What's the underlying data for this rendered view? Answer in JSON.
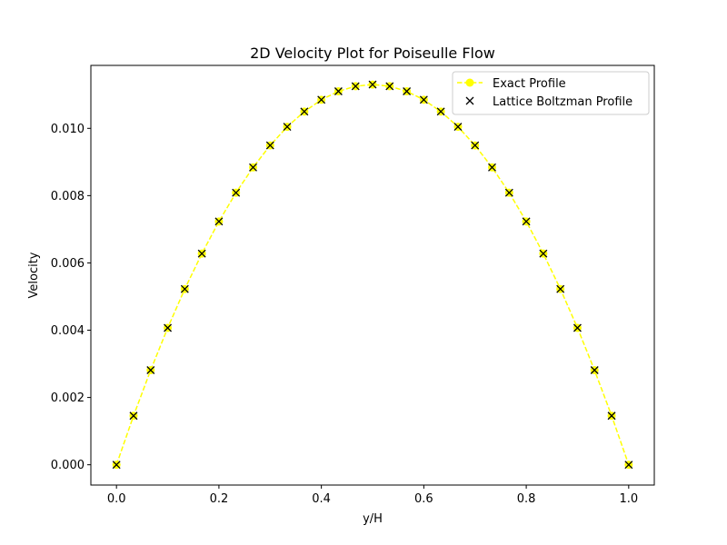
{
  "chart_data": {
    "type": "line",
    "title": "2D Velocity Plot for Poiseulle Flow",
    "xlabel": "y/H",
    "ylabel": "Velocity",
    "xlim": [
      -0.05,
      1.05
    ],
    "ylim": [
      -0.000603,
      0.011871
    ],
    "x_ticks": [
      "0.0",
      "0.2",
      "0.4",
      "0.6",
      "0.8",
      "1.0"
    ],
    "x_tick_values": [
      0.0,
      0.2,
      0.4,
      0.6,
      0.8,
      1.0
    ],
    "y_ticks": [
      "0.000",
      "0.002",
      "0.004",
      "0.006",
      "0.008",
      "0.010"
    ],
    "y_tick_values": [
      0.0,
      0.002,
      0.004,
      0.006,
      0.008,
      0.01
    ],
    "grid": false,
    "legend_position": "top-right",
    "series": [
      {
        "name": "Exact Profile",
        "style": "dashed-line-circle-markers",
        "color": "#ffff00",
        "x": [
          0.0,
          0.0333,
          0.0667,
          0.1,
          0.1333,
          0.1667,
          0.2,
          0.2333,
          0.2667,
          0.3,
          0.3333,
          0.3667,
          0.4,
          0.4333,
          0.4667,
          0.5,
          0.5333,
          0.5667,
          0.6,
          0.6333,
          0.6667,
          0.7,
          0.7333,
          0.7667,
          0.8,
          0.8333,
          0.8667,
          0.9,
          0.9333,
          0.9667,
          1.0
        ],
        "y": [
          0.0,
          0.001456,
          0.002812,
          0.004068,
          0.005223,
          0.006277,
          0.007232,
          0.008086,
          0.008839,
          0.009493,
          0.010046,
          0.010498,
          0.01085,
          0.011101,
          0.011252,
          0.011302,
          0.011252,
          0.011101,
          0.01085,
          0.010498,
          0.010046,
          0.009493,
          0.008839,
          0.008086,
          0.007232,
          0.006277,
          0.005223,
          0.004068,
          0.002812,
          0.001456,
          0.0
        ]
      },
      {
        "name": "Lattice Boltzman Profile",
        "style": "x-markers",
        "color": "#000000",
        "x": [
          0.0,
          0.0333,
          0.0667,
          0.1,
          0.1333,
          0.1667,
          0.2,
          0.2333,
          0.2667,
          0.3,
          0.3333,
          0.3667,
          0.4,
          0.4333,
          0.4667,
          0.5,
          0.5333,
          0.5667,
          0.6,
          0.6333,
          0.6667,
          0.7,
          0.7333,
          0.7667,
          0.8,
          0.8333,
          0.8667,
          0.9,
          0.9333,
          0.9667,
          1.0
        ],
        "y": [
          0.0,
          0.001456,
          0.002812,
          0.004068,
          0.005223,
          0.006277,
          0.007232,
          0.008086,
          0.008839,
          0.009493,
          0.010046,
          0.010498,
          0.01085,
          0.011101,
          0.011252,
          0.011302,
          0.011252,
          0.011101,
          0.01085,
          0.010498,
          0.010046,
          0.009493,
          0.008839,
          0.008086,
          0.007232,
          0.006277,
          0.005223,
          0.004068,
          0.002812,
          0.001456,
          0.0
        ]
      }
    ]
  }
}
